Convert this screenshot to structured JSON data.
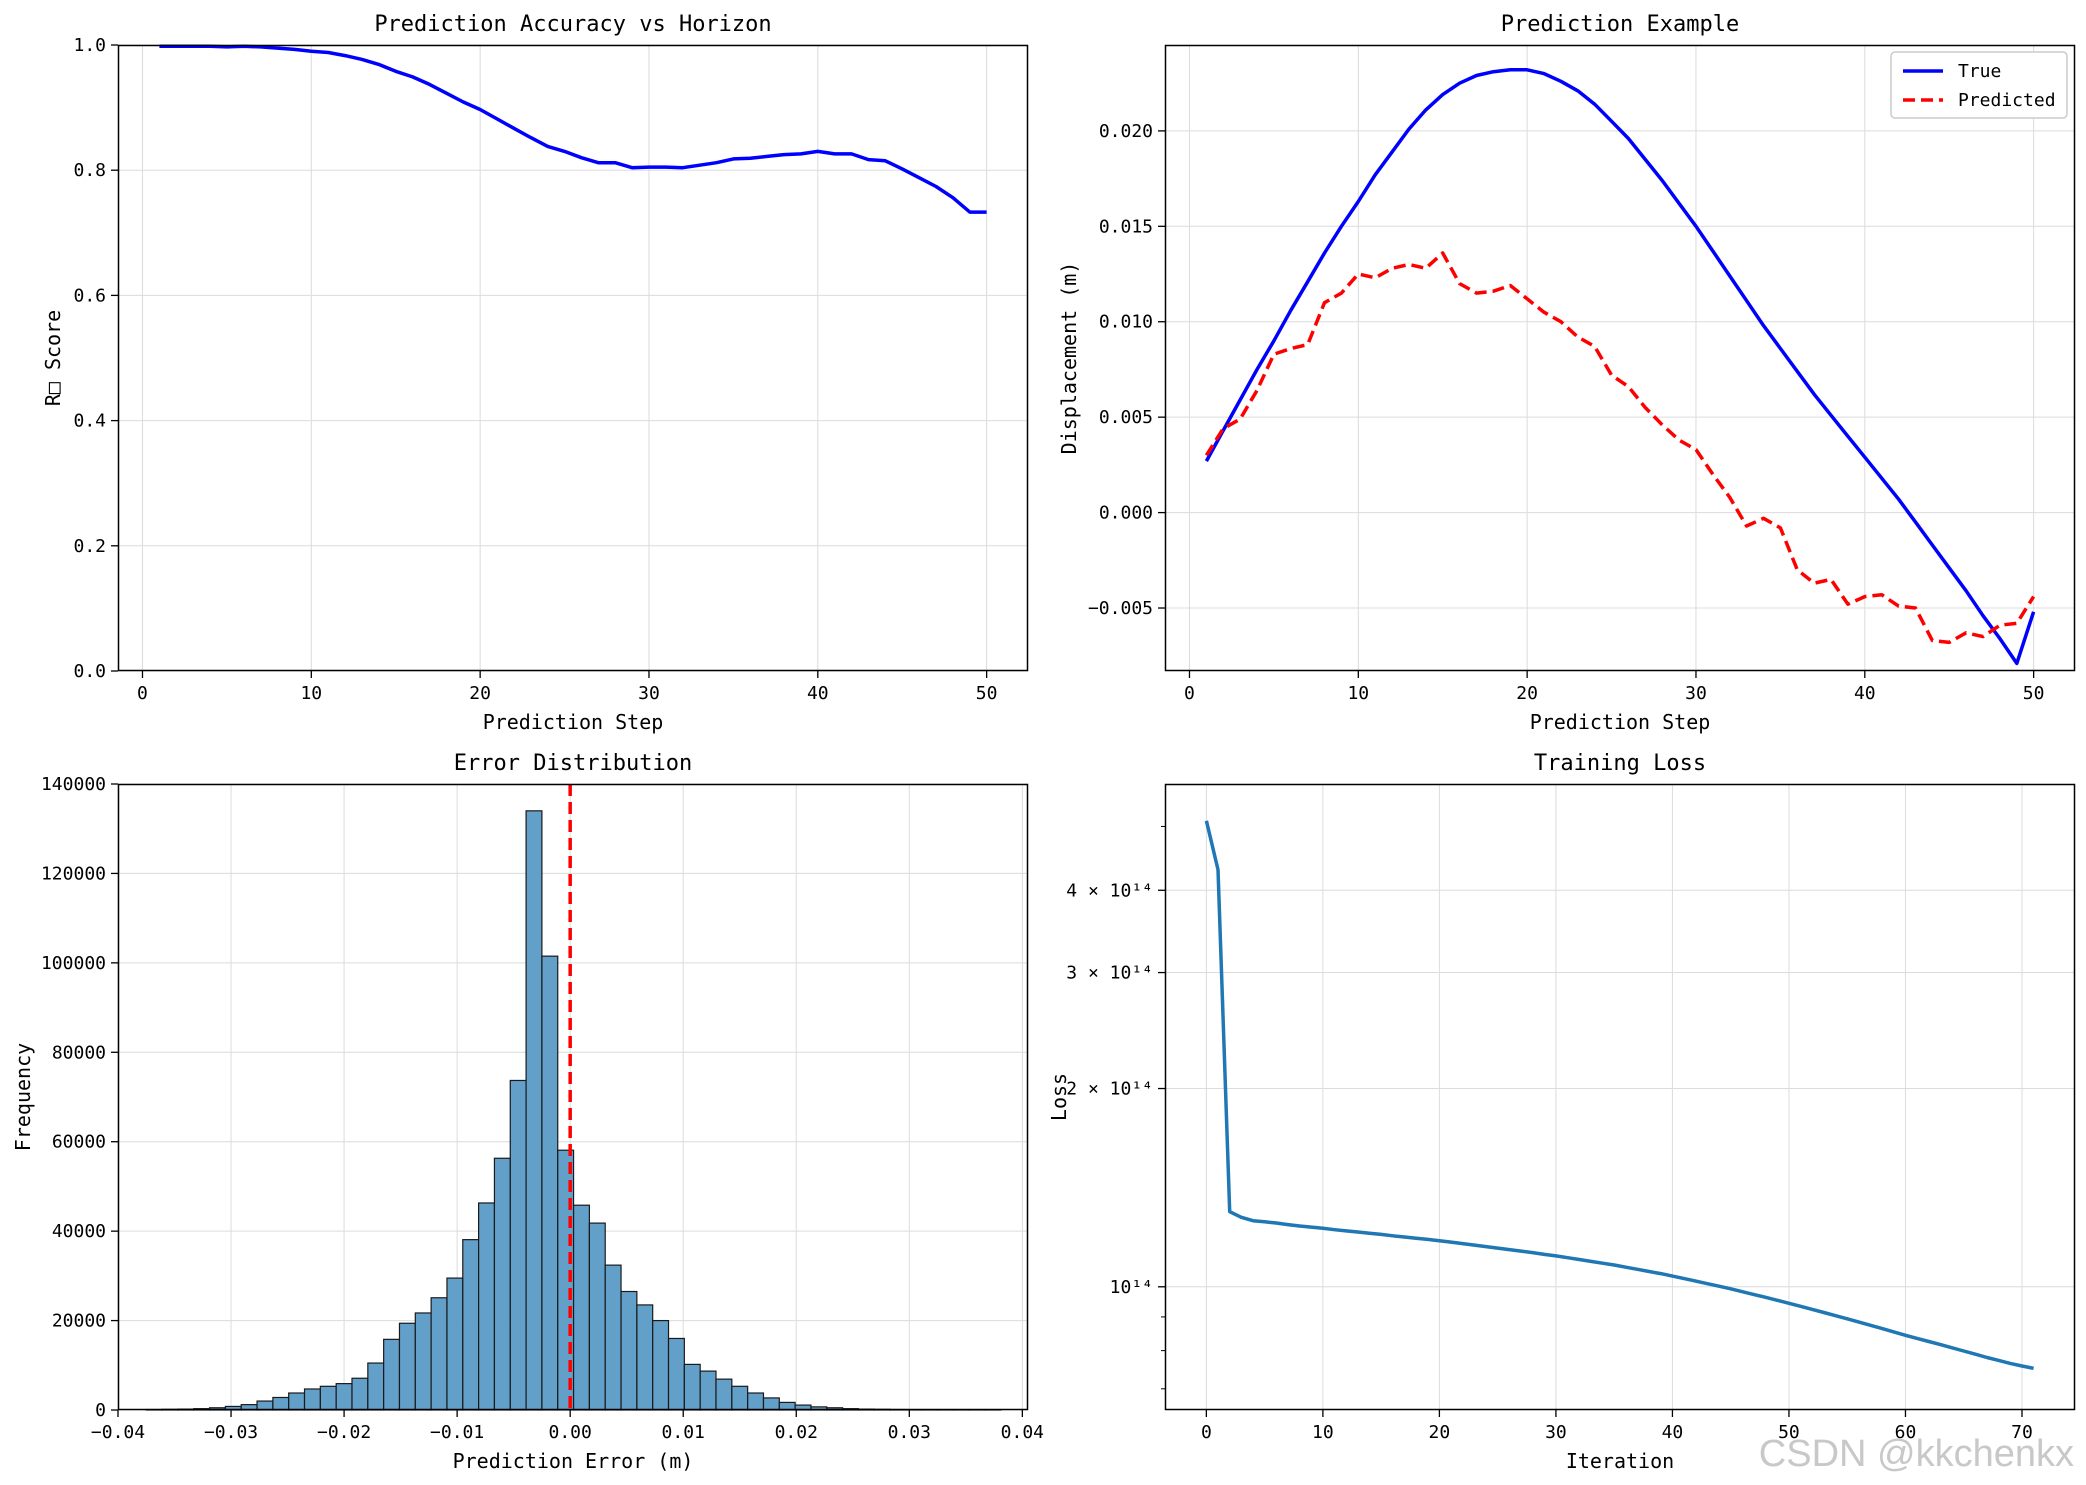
{
  "watermark": "CSDN @kkchenkx",
  "chart_data": [
    {
      "type": "line",
      "title": "Prediction Accuracy vs Horizon",
      "xlabel": "Prediction Step",
      "ylabel": "R□ Score",
      "xlim": [
        -1.45,
        52.45
      ],
      "ylim": [
        0.0,
        1.0
      ],
      "xticks": [
        0,
        10,
        20,
        30,
        40,
        50
      ],
      "yticks": [
        0.0,
        0.2,
        0.4,
        0.6,
        0.8,
        1.0
      ],
      "grid": true,
      "series": [
        {
          "color": "#0000ff",
          "dash": "solid",
          "x": [
            1,
            2,
            3,
            4,
            5,
            6,
            7,
            8,
            9,
            10,
            11,
            12,
            13,
            14,
            15,
            16,
            17,
            18,
            19,
            20,
            21,
            22,
            23,
            24,
            25,
            26,
            27,
            28,
            29,
            30,
            31,
            32,
            33,
            34,
            35,
            36,
            37,
            38,
            39,
            40,
            41,
            42,
            43,
            44,
            45,
            46,
            47,
            48,
            49,
            50
          ],
          "y": [
            0.998,
            0.998,
            0.998,
            0.998,
            0.997,
            0.998,
            0.997,
            0.995,
            0.993,
            0.99,
            0.988,
            0.983,
            0.977,
            0.969,
            0.958,
            0.949,
            0.937,
            0.923,
            0.909,
            0.897,
            0.882,
            0.867,
            0.852,
            0.838,
            0.83,
            0.82,
            0.812,
            0.812,
            0.804,
            0.805,
            0.805,
            0.804,
            0.808,
            0.812,
            0.818,
            0.819,
            0.822,
            0.825,
            0.826,
            0.83,
            0.826,
            0.826,
            0.817,
            0.815,
            0.802,
            0.788,
            0.774,
            0.756,
            0.733,
            0.733
          ]
        }
      ]
    },
    {
      "type": "line",
      "title": "Prediction Example",
      "xlabel": "Prediction Step",
      "ylabel": "Displacement (m)",
      "xlim": [
        -1.45,
        52.45
      ],
      "ylim": [
        -0.0083,
        0.0245
      ],
      "xticks": [
        0,
        10,
        20,
        30,
        40,
        50
      ],
      "yticks": [
        -0.005,
        0.0,
        0.005,
        0.01,
        0.015,
        0.02
      ],
      "ytick_labels": [
        "−0.005",
        "0.000",
        "0.005",
        "0.010",
        "0.015",
        "0.020"
      ],
      "grid": true,
      "legend": "top-right",
      "series": [
        {
          "name": "True",
          "color": "#0000ff",
          "dash": "solid",
          "x": [
            1,
            2,
            3,
            4,
            5,
            6,
            7,
            8,
            9,
            10,
            11,
            12,
            13,
            14,
            15,
            16,
            17,
            18,
            19,
            20,
            21,
            22,
            23,
            24,
            25,
            26,
            27,
            28,
            29,
            30,
            31,
            32,
            33,
            34,
            35,
            36,
            37,
            38,
            39,
            40,
            41,
            42,
            43,
            44,
            45,
            46,
            47,
            48,
            49,
            50
          ],
          "y": [
            0.0027,
            0.0043,
            0.0059,
            0.0075,
            0.009,
            0.0106,
            0.0121,
            0.0136,
            0.015,
            0.0163,
            0.0177,
            0.0189,
            0.0201,
            0.0211,
            0.0219,
            0.0225,
            0.0229,
            0.0231,
            0.0232,
            0.0232,
            0.023,
            0.0226,
            0.0221,
            0.0214,
            0.0205,
            0.0196,
            0.0185,
            0.0174,
            0.0162,
            0.015,
            0.0137,
            0.0124,
            0.0111,
            0.0098,
            0.0086,
            0.0074,
            0.0062,
            0.0051,
            0.004,
            0.0029,
            0.0018,
            0.0007,
            -0.0005,
            -0.0017,
            -0.0029,
            -0.0041,
            -0.0054,
            -0.0066,
            -0.0079,
            -0.0052
          ]
        },
        {
          "name": "Predicted",
          "color": "#ff0000",
          "dash": "dashed",
          "x": [
            1,
            2,
            3,
            4,
            5,
            6,
            7,
            8,
            9,
            10,
            11,
            12,
            13,
            14,
            15,
            16,
            17,
            18,
            19,
            20,
            21,
            22,
            23,
            24,
            25,
            26,
            27,
            28,
            29,
            30,
            31,
            32,
            33,
            34,
            35,
            36,
            37,
            38,
            39,
            40,
            41,
            42,
            43,
            44,
            45,
            46,
            47,
            48,
            49,
            50
          ],
          "y": [
            0.003,
            0.0044,
            0.0049,
            0.0064,
            0.0083,
            0.0086,
            0.0088,
            0.011,
            0.0115,
            0.0125,
            0.0123,
            0.0128,
            0.013,
            0.0128,
            0.0136,
            0.012,
            0.0115,
            0.0116,
            0.0119,
            0.0112,
            0.0105,
            0.01,
            0.0092,
            0.0087,
            0.0072,
            0.0066,
            0.0055,
            0.0046,
            0.0038,
            0.0033,
            0.002,
            0.0008,
            -0.0007,
            -0.0003,
            -0.0008,
            -0.003,
            -0.0037,
            -0.0035,
            -0.0048,
            -0.0044,
            -0.0043,
            -0.0049,
            -0.005,
            -0.0067,
            -0.0068,
            -0.0063,
            -0.0065,
            -0.0059,
            -0.0058,
            -0.0044
          ]
        }
      ]
    },
    {
      "type": "bar",
      "title": "Error Distribution",
      "xlabel": "Prediction Error (m)",
      "ylabel": "Frequency",
      "xlim": [
        -0.04,
        0.0405
      ],
      "ylim": [
        0,
        140000
      ],
      "xticks": [
        -0.04,
        -0.03,
        -0.02,
        -0.01,
        0.0,
        0.01,
        0.02,
        0.03,
        0.04
      ],
      "xtick_labels": [
        "−0.04",
        "−0.03",
        "−0.02",
        "−0.01",
        "0.00",
        "0.01",
        "0.02",
        "0.03",
        "0.04"
      ],
      "yticks": [
        0,
        20000,
        40000,
        60000,
        80000,
        100000,
        120000,
        140000
      ],
      "grid": true,
      "bin_edges": [
        -0.0375,
        -0.0361,
        -0.0347,
        -0.0333,
        -0.0319,
        -0.0305,
        -0.0291,
        -0.0277,
        -0.0263,
        -0.0249,
        -0.0235,
        -0.0221,
        -0.0207,
        -0.0193,
        -0.0179,
        -0.0165,
        -0.0151,
        -0.0137,
        -0.0123,
        -0.0109,
        -0.0095,
        -0.0081,
        -0.0067,
        -0.0053,
        -0.0039,
        -0.0025,
        -0.0011,
        0.0003,
        0.0017,
        0.0031,
        0.0045,
        0.0059,
        0.0073,
        0.0087,
        0.0101,
        0.0115,
        0.0129,
        0.0143,
        0.0157,
        0.0171,
        0.0185,
        0.0199,
        0.0213,
        0.0227,
        0.0241,
        0.0255,
        0.0269,
        0.0283,
        0.0297,
        0.0311,
        0.0325,
        0.0339,
        0.0353,
        0.0367,
        0.0381
      ],
      "values": [
        100,
        150,
        200,
        300,
        500,
        800,
        1200,
        2000,
        2800,
        3800,
        4700,
        5300,
        5900,
        7100,
        10500,
        15800,
        19400,
        21700,
        25100,
        29500,
        38100,
        46300,
        56300,
        73700,
        134000,
        101500,
        58100,
        45800,
        41800,
        32400,
        26500,
        23500,
        20000,
        16000,
        10200,
        8700,
        6900,
        5300,
        3800,
        2700,
        1700,
        1100,
        700,
        500,
        300,
        200,
        150,
        100,
        80,
        60,
        40,
        30,
        20,
        10
      ],
      "bar_color": "#5b9bc6",
      "reference_line": {
        "x": 0.0,
        "color": "#ff0000",
        "dash": "dashed"
      }
    },
    {
      "type": "line",
      "title": "Training Loss",
      "xlabel": "Iteration",
      "ylabel": "Loss",
      "xlim": [
        -3.55,
        74.55
      ],
      "yscale": "log",
      "ylim": [
        6500,
        58000
      ],
      "xticks": [
        0,
        10,
        20,
        30,
        40,
        50,
        60,
        70
      ],
      "yticks": [
        10000,
        20000,
        30000,
        40000
      ],
      "ytick_labels": [
        "10¹⁴",
        "2 × 10¹⁴",
        "3 × 10¹⁴",
        "4 × 10¹⁴"
      ],
      "minor_yticks": [
        7000,
        8000,
        9000,
        50000
      ],
      "grid": true,
      "series": [
        {
          "color": "#1f77b4",
          "dash": "solid",
          "x": [
            0,
            1,
            2,
            3,
            4,
            5,
            6,
            7,
            8,
            9,
            10,
            11,
            12,
            13,
            14,
            15,
            16,
            17,
            18,
            19,
            20,
            21,
            22,
            23,
            24,
            25,
            26,
            27,
            28,
            29,
            30,
            31,
            32,
            33,
            34,
            35,
            36,
            37,
            38,
            39,
            40,
            41,
            42,
            43,
            44,
            45,
            46,
            47,
            48,
            49,
            50,
            51,
            52,
            53,
            54,
            55,
            56,
            57,
            58,
            59,
            60,
            61,
            62,
            63,
            64,
            65,
            66,
            67,
            68,
            69,
            70,
            71
          ],
          "y": [
            51000,
            43000,
            13000,
            12750,
            12600,
            12550,
            12500,
            12430,
            12370,
            12320,
            12270,
            12210,
            12160,
            12110,
            12060,
            12010,
            11950,
            11900,
            11850,
            11800,
            11750,
            11690,
            11630,
            11570,
            11510,
            11450,
            11390,
            11330,
            11270,
            11200,
            11140,
            11070,
            11000,
            10930,
            10860,
            10790,
            10710,
            10630,
            10550,
            10470,
            10380,
            10290,
            10200,
            10110,
            10020,
            9930,
            9830,
            9730,
            9640,
            9540,
            9440,
            9340,
            9240,
            9140,
            9040,
            8940,
            8840,
            8740,
            8640,
            8540,
            8440,
            8350,
            8260,
            8170,
            8080,
            7990,
            7900,
            7810,
            7730,
            7650,
            7580,
            7520
          ]
        }
      ]
    }
  ]
}
